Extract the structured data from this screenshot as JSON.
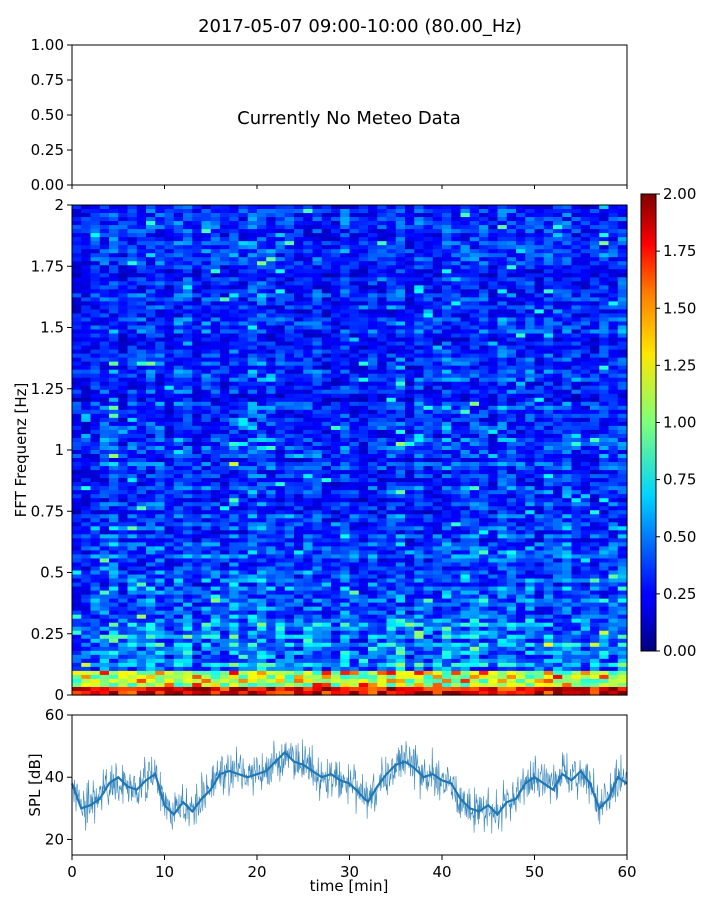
{
  "figure": {
    "title": "2017-05-07 09:00-10:00 (80.00_Hz)"
  },
  "chart_data": [
    {
      "type": "line",
      "panel": "meteo",
      "annotation": "Currently No Meteo Data",
      "ylim": [
        0,
        1
      ],
      "yticks": [
        "0.00",
        "0.25",
        "0.50",
        "0.75",
        "1.00"
      ],
      "xlim": [
        0,
        60
      ],
      "series": []
    },
    {
      "type": "heatmap",
      "panel": "spectrogram",
      "ylabel": "FFT Frequenz [Hz]",
      "xlim": [
        0,
        60
      ],
      "ylim": [
        0,
        2
      ],
      "yticks": [
        "0",
        "0.25",
        "0.5",
        "0.75",
        "1",
        "1.25",
        "1.5",
        "1.75",
        "2"
      ],
      "colorbar": {
        "range": [
          0,
          2
        ],
        "ticks": [
          "0.00",
          "0.25",
          "0.50",
          "0.75",
          "1.00",
          "1.25",
          "1.50",
          "1.75",
          "2.00"
        ],
        "colormap": "jet"
      },
      "features": {
        "low_freq_band_hz": [
          0,
          0.1
        ],
        "low_freq_level": 1.8,
        "typical_level": 0.3
      }
    },
    {
      "type": "line",
      "panel": "spl",
      "xlabel": "time [min]",
      "ylabel": "SPL [dB]",
      "xlim": [
        0,
        60
      ],
      "ylim": [
        15,
        60
      ],
      "xticks": [
        "0",
        "10",
        "20",
        "30",
        "40",
        "50",
        "60"
      ],
      "yticks": [
        "20",
        "40",
        "60"
      ],
      "color": "#1f77b4",
      "x": [
        0,
        1,
        2,
        3,
        4,
        5,
        6,
        7,
        8,
        9,
        10,
        11,
        12,
        13,
        14,
        15,
        16,
        17,
        18,
        19,
        20,
        21,
        22,
        23,
        24,
        25,
        26,
        27,
        28,
        29,
        30,
        31,
        32,
        33,
        34,
        35,
        36,
        37,
        38,
        39,
        40,
        41,
        42,
        43,
        44,
        45,
        46,
        47,
        48,
        49,
        50,
        51,
        52,
        53,
        54,
        55,
        56,
        57,
        58,
        59,
        60
      ],
      "y": [
        38,
        30,
        31,
        33,
        38,
        40,
        37,
        36,
        39,
        41,
        31,
        28,
        32,
        29,
        33,
        36,
        41,
        42,
        41,
        40,
        41,
        42,
        45,
        48,
        45,
        44,
        42,
        40,
        41,
        39,
        38,
        35,
        32,
        37,
        41,
        44,
        45,
        43,
        40,
        41,
        39,
        38,
        33,
        30,
        29,
        31,
        28,
        32,
        33,
        38,
        40,
        38,
        36,
        41,
        39,
        42,
        38,
        30,
        33,
        40,
        38
      ]
    }
  ]
}
